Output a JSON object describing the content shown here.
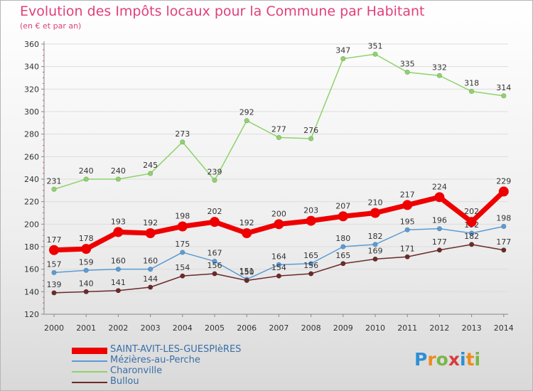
{
  "header": {
    "title": "Evolution des Impôts locaux pour la Commune par Habitant",
    "subtitle": "(en € et par an)"
  },
  "logo": {
    "letters": [
      "P",
      "r",
      "o",
      "x",
      "i",
      "t",
      "i"
    ],
    "colors": [
      "#2e8fd6",
      "#f08a1c",
      "#7ab648",
      "#d93b3b",
      "#2e8fd6",
      "#f08a1c",
      "#7ab648"
    ]
  },
  "chart_data": {
    "type": "line",
    "x": [
      2000,
      2001,
      2002,
      2003,
      2004,
      2005,
      2006,
      2007,
      2008,
      2009,
      2010,
      2011,
      2012,
      2013,
      2014
    ],
    "ylim": [
      120,
      360
    ],
    "yticks": [
      120,
      140,
      160,
      180,
      200,
      220,
      240,
      260,
      280,
      300,
      320,
      340,
      360
    ],
    "grid": "horizontal",
    "legend_position": "bottom-left",
    "series": [
      {
        "name": "Charonville",
        "color": "#8ed36a",
        "values": [
          231,
          240,
          240,
          245,
          273,
          239,
          292,
          277,
          276,
          347,
          351,
          335,
          332,
          318,
          314
        ]
      },
      {
        "name": "Mézières-au-Perche",
        "color": "#5b9bd5",
        "values": [
          157,
          159,
          160,
          160,
          175,
          167,
          151,
          164,
          165,
          180,
          182,
          195,
          196,
          192,
          198
        ]
      },
      {
        "name": "Bullou",
        "color": "#6b2a2a",
        "values": [
          139,
          140,
          141,
          144,
          154,
          156,
          150,
          154,
          156,
          165,
          169,
          171,
          177,
          182,
          177
        ]
      },
      {
        "name": "SAINT-AVIT-LES-GUESPIèRES",
        "color": "#ee0000",
        "values": [
          177,
          178,
          193,
          192,
          198,
          202,
          192,
          200,
          203,
          207,
          210,
          217,
          224,
          202,
          229
        ]
      }
    ]
  }
}
